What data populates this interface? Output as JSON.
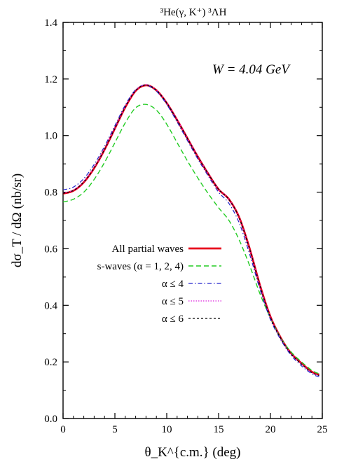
{
  "chart_data": {
    "type": "line",
    "title": {
      "text": "³He(γ, K⁺) ³ΛH"
    },
    "annotation": "W = 4.04 GeV",
    "xlabel": "θ_K^{c.m.} (deg)",
    "ylabel": "dσ_T / dΩ (nb/sr)",
    "xlim": [
      0,
      25
    ],
    "ylim": [
      0,
      1.4
    ],
    "xticks": [
      "0",
      "5",
      "10",
      "15",
      "20",
      "25"
    ],
    "yticks": [
      "0.0",
      "0.2",
      "0.4",
      "0.6",
      "0.8",
      "1.0",
      "1.2",
      "1.4"
    ],
    "legend": {
      "placement": "lower-left",
      "entries": [
        "All partial waves",
        "s-waves (α = 1, 2, 4)",
        "α ≤ 4",
        "α ≤ 5",
        "α ≤ 6"
      ]
    },
    "series": [
      {
        "name": "All partial waves",
        "color": "#e8001c",
        "style": "solid-thick",
        "x": [
          0,
          1,
          2,
          3,
          4,
          5,
          6,
          7,
          8,
          9,
          10,
          11,
          12,
          13,
          14,
          15,
          16,
          17,
          18,
          19,
          20,
          21,
          22,
          23,
          24,
          24.7
        ],
        "y": [
          0.795,
          0.805,
          0.835,
          0.885,
          0.95,
          1.025,
          1.1,
          1.158,
          1.178,
          1.16,
          1.115,
          1.055,
          0.99,
          0.925,
          0.865,
          0.81,
          0.775,
          0.71,
          0.6,
          0.47,
          0.36,
          0.285,
          0.23,
          0.195,
          0.165,
          0.155
        ]
      },
      {
        "name": "s-waves (α = 1, 2, 4)",
        "color": "#22cc22",
        "style": "dashed",
        "x": [
          0,
          1,
          2,
          3,
          4,
          5,
          6,
          7,
          8,
          9,
          10,
          11,
          12,
          13,
          14,
          15,
          16,
          17,
          18,
          19,
          20,
          21,
          22,
          23,
          24,
          24.7
        ],
        "y": [
          0.765,
          0.775,
          0.8,
          0.845,
          0.905,
          0.975,
          1.045,
          1.098,
          1.11,
          1.09,
          1.04,
          0.975,
          0.91,
          0.85,
          0.795,
          0.745,
          0.7,
          0.63,
          0.54,
          0.44,
          0.355,
          0.285,
          0.235,
          0.2,
          0.17,
          0.158
        ]
      },
      {
        "name": "α ≤ 4",
        "color": "#2222cc",
        "style": "dash-dot",
        "x": [
          0,
          1,
          2,
          3,
          4,
          5,
          6,
          7,
          8,
          9,
          10,
          11,
          12,
          13,
          14,
          15,
          16,
          17,
          18,
          19,
          20,
          21,
          22,
          23,
          24,
          24.7
        ],
        "y": [
          0.808,
          0.818,
          0.848,
          0.898,
          0.962,
          1.035,
          1.108,
          1.162,
          1.178,
          1.157,
          1.11,
          1.048,
          0.982,
          0.917,
          0.857,
          0.8,
          0.76,
          0.69,
          0.58,
          0.455,
          0.35,
          0.278,
          0.223,
          0.186,
          0.158,
          0.147
        ]
      },
      {
        "name": "α ≤ 5",
        "color": "#dd22dd",
        "style": "dotted",
        "x": [
          0,
          1,
          2,
          3,
          4,
          5,
          6,
          7,
          8,
          9,
          10,
          11,
          12,
          13,
          14,
          15,
          16,
          17,
          18,
          19,
          20,
          21,
          22,
          23,
          24,
          24.7
        ],
        "y": [
          0.797,
          0.807,
          0.837,
          0.887,
          0.952,
          1.027,
          1.102,
          1.16,
          1.18,
          1.161,
          1.116,
          1.056,
          0.991,
          0.926,
          0.866,
          0.811,
          0.774,
          0.708,
          0.598,
          0.468,
          0.358,
          0.283,
          0.228,
          0.192,
          0.162,
          0.151
        ]
      },
      {
        "name": "α ≤ 6",
        "color": "#000000",
        "style": "short-dash",
        "x": [
          0,
          1,
          2,
          3,
          4,
          5,
          6,
          7,
          8,
          9,
          10,
          11,
          12,
          13,
          14,
          15,
          16,
          17,
          18,
          19,
          20,
          21,
          22,
          23,
          24,
          24.7
        ],
        "y": [
          0.796,
          0.806,
          0.836,
          0.886,
          0.951,
          1.026,
          1.101,
          1.159,
          1.179,
          1.16,
          1.115,
          1.055,
          0.99,
          0.925,
          0.865,
          0.81,
          0.774,
          0.708,
          0.598,
          0.468,
          0.358,
          0.283,
          0.228,
          0.192,
          0.162,
          0.152
        ]
      }
    ]
  }
}
